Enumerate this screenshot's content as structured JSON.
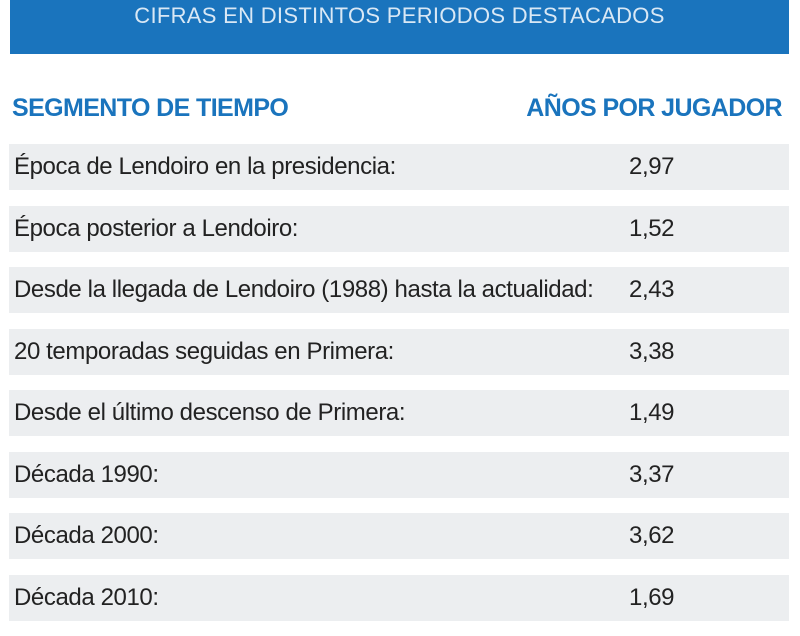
{
  "banner": {
    "title": "CIFRAS EN DISTINTOS PERIODOS DESTACADOS"
  },
  "header": {
    "col1": "SEGMENTO DE TIEMPO",
    "col2": "AÑOS POR JUGADOR"
  },
  "colors": {
    "accent": "#1a74bd",
    "row_bg": "#eceef0"
  },
  "chart_data": {
    "type": "table",
    "columns": [
      "SEGMENTO DE TIEMPO",
      "AÑOS POR JUGADOR"
    ],
    "rows": [
      {
        "label": "Época de Lendoiro en la presidencia:",
        "value": "2,97"
      },
      {
        "label": "Época posterior a Lendoiro:",
        "value": "1,52"
      },
      {
        "label": "Desde la llegada de Lendoiro (1988) hasta la actualidad:",
        "value": "2,43"
      },
      {
        "label": "20 temporadas seguidas en Primera:",
        "value": "3,38"
      },
      {
        "label": "Desde el último descenso de Primera:",
        "value": "1,49"
      },
      {
        "label": "Década 1990:",
        "value": "3,37"
      },
      {
        "label": "Década 2000:",
        "value": "3,62"
      },
      {
        "label": "Década 2010:",
        "value": "1,69"
      }
    ]
  }
}
